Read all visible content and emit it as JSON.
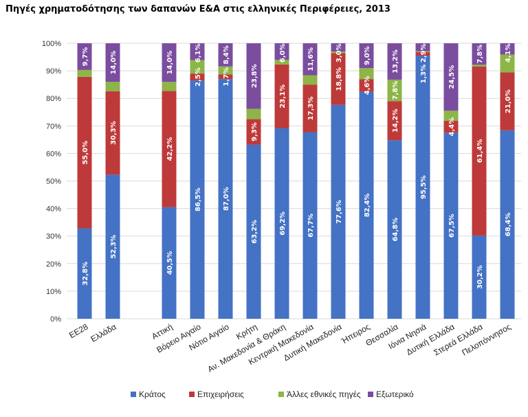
{
  "chart_data": {
    "type": "bar",
    "stacked": true,
    "title": "Πηγές χρηματοδότησης των δαπανών Ε&Α στις ελληνικές Περιφέρειες, 2013",
    "xlabel": "",
    "ylabel": "",
    "ylim": [
      0,
      100
    ],
    "yticks": [
      "0%",
      "10%",
      "20%",
      "30%",
      "40%",
      "50%",
      "60%",
      "70%",
      "80%",
      "90%",
      "100%"
    ],
    "grid": true,
    "legend_position": "bottom",
    "categories": [
      "ΕΕ28",
      "Ελλάδα",
      "",
      "Αττική",
      "Βόρειο Αιγαίο",
      "Νότιο Αιγαίο",
      "Κρήτη",
      "Αν. Μακεδονία & Θράκη",
      "Κεντρική Μακεδονία",
      "Δυτική Μακεδονία",
      "Ήπειρος",
      "Θεσσαλία",
      "Ιόνια Νησιά",
      "Δυτική Ελλάδα",
      "Στερεά Ελλάδα",
      "Πελοπόννησος"
    ],
    "series": [
      {
        "name": "Κράτος",
        "color": "#4472C4",
        "values": [
          32.8,
          52.3,
          null,
          40.5,
          86.5,
          87.0,
          63.2,
          69.2,
          67.7,
          77.6,
          82.4,
          64.8,
          95.5,
          67.5,
          30.2,
          68.4
        ],
        "labels": [
          "32,8%",
          "52,3%",
          "",
          "40,5%",
          "86,5%",
          "87,0%",
          "63,2%",
          "69,2%",
          "67,7%",
          "77,6%",
          "82,4%",
          "64,8%",
          "95,5%",
          "67,5%",
          "30,2%",
          "68,4%"
        ]
      },
      {
        "name": "Επιχειρήσεις",
        "color": "#BE3A3A",
        "values": [
          55.0,
          30.3,
          null,
          42.2,
          2.5,
          1.7,
          9.3,
          23.1,
          17.3,
          18.8,
          4.6,
          14.2,
          1.3,
          4.4,
          61.4,
          21.0
        ],
        "labels": [
          "55,0%",
          "30,3%",
          "",
          "42,2%",
          "2,5%",
          "1,7%",
          "9,3%",
          "23,1%",
          "17,3%",
          "18,8%",
          "4,6%",
          "14,2%",
          "1,3%",
          "4,4%",
          "61,4%",
          "21,0%"
        ]
      },
      {
        "name": "Άλλες εθνικές πηγές",
        "color": "#8DB547",
        "values": [
          2.5,
          3.4,
          null,
          3.3,
          4.9,
          2.9,
          3.7,
          1.7,
          3.4,
          0.6,
          4.0,
          7.8,
          0.3,
          3.6,
          0.6,
          6.5
        ],
        "labels": [
          "",
          "",
          "",
          "",
          "",
          "",
          "",
          "",
          "",
          "",
          "",
          "7,8%",
          "",
          "",
          "",
          ""
        ]
      },
      {
        "name": "Εξωτερικό",
        "color": "#7A4D9F",
        "values": [
          9.7,
          14.0,
          null,
          14.0,
          6.1,
          8.4,
          23.8,
          6.0,
          11.6,
          3.0,
          9.0,
          13.2,
          2.9,
          24.5,
          7.8,
          4.1
        ],
        "labels": [
          "9,7%",
          "14,0%",
          "",
          "14,0%",
          "6,1%",
          "8,4%",
          "23,8%",
          "6,0%",
          "11,6%",
          "3,0%",
          "9,0%",
          "13,2%",
          "2,9%",
          "24,5%",
          "7,8%",
          "4,1%"
        ]
      }
    ]
  }
}
